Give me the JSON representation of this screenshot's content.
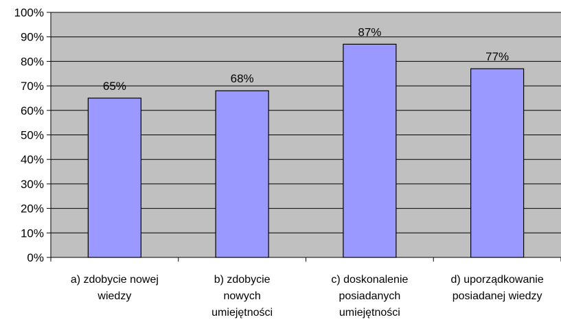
{
  "chart_data": {
    "type": "bar",
    "title": "",
    "xlabel": "",
    "ylabel": "",
    "categories": [
      [
        "a) zdobycie nowej",
        "wiedzy"
      ],
      [
        "b) zdobycie",
        "nowych",
        "umiejętności"
      ],
      [
        "c) doskonalenie",
        "posiadanych",
        "umiejętności"
      ],
      [
        "d) uporządkowanie",
        "posiadanej wiedzy"
      ]
    ],
    "values": [
      65,
      68,
      87,
      77
    ],
    "data_labels": [
      "65%",
      "68%",
      "87%",
      "77%"
    ],
    "ylim": [
      0,
      100
    ],
    "yticks": [
      0,
      10,
      20,
      30,
      40,
      50,
      60,
      70,
      80,
      90,
      100
    ],
    "ytick_labels": [
      "0%",
      "10%",
      "20%",
      "30%",
      "40%",
      "50%",
      "60%",
      "70%",
      "80%",
      "90%",
      "100%"
    ],
    "grid": true,
    "legend": "none",
    "colors": {
      "plot_background": "#c0c0c0",
      "bar_fill": "#9999ff",
      "bar_stroke": "#000000",
      "gridline": "#000000"
    }
  }
}
